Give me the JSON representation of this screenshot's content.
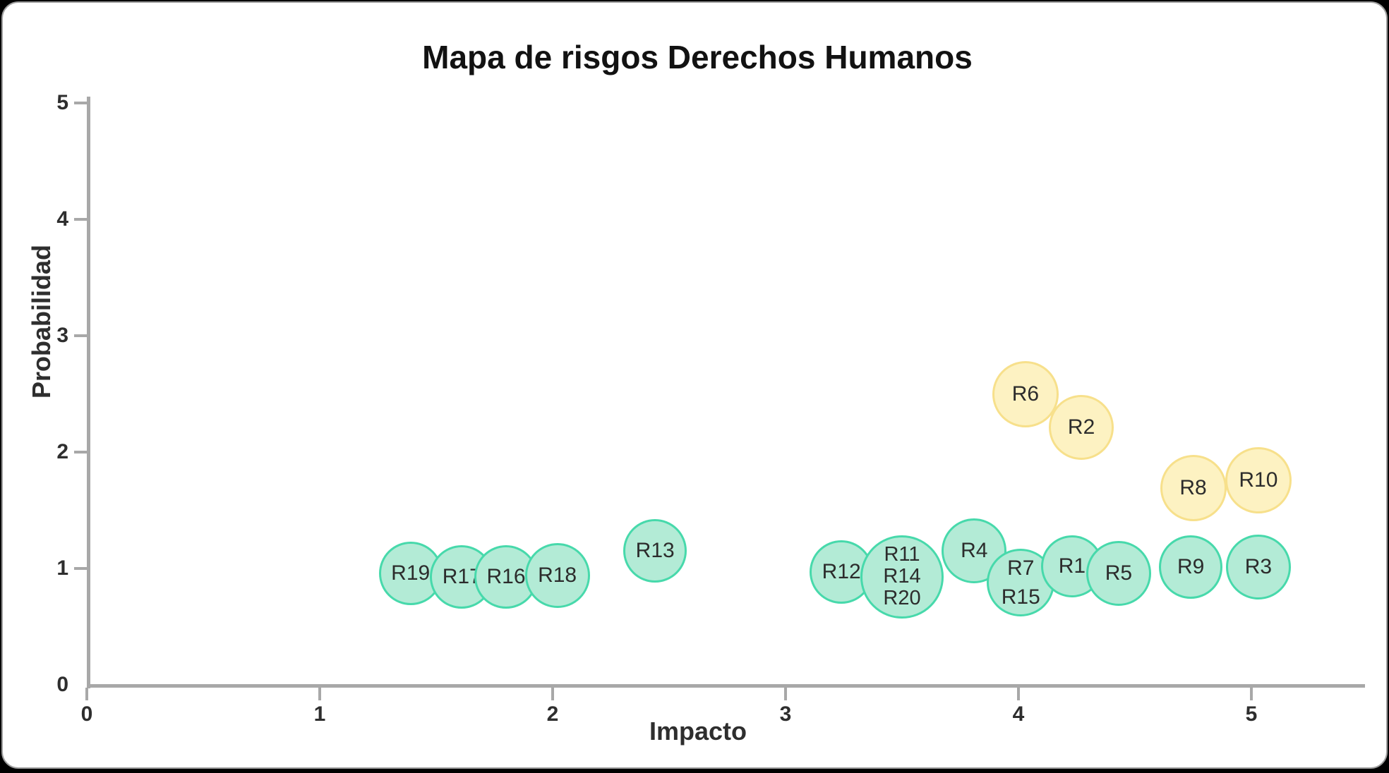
{
  "title": "Mapa de risgos Derechos Humanos",
  "chart_data": {
    "type": "scatter",
    "subtype": "bubble-risk-map",
    "title": "Mapa de risgos Derechos Humanos",
    "xlabel": "Impacto",
    "ylabel": "Probabilidad",
    "xlim": [
      0,
      5.45
    ],
    "ylim": [
      0,
      5
    ],
    "x_ticks": [
      "0",
      "1",
      "2",
      "3",
      "4",
      "5"
    ],
    "y_ticks": [
      "0",
      "1",
      "2",
      "3",
      "4",
      "5"
    ],
    "grid": false,
    "legend": "none",
    "series": [
      {
        "name": "riesgo-bajo-verde",
        "fill_color": "#b3ebd6",
        "stroke_color": "#47d9ab",
        "points": [
          {
            "labels": [
              "R19"
            ],
            "x": 1.39,
            "y": 0.96,
            "r": 45
          },
          {
            "labels": [
              "R17"
            ],
            "x": 1.61,
            "y": 0.93,
            "r": 45
          },
          {
            "labels": [
              "R16"
            ],
            "x": 1.8,
            "y": 0.93,
            "r": 45
          },
          {
            "labels": [
              "R18"
            ],
            "x": 2.02,
            "y": 0.94,
            "r": 46
          },
          {
            "labels": [
              "R13"
            ],
            "x": 2.44,
            "y": 1.15,
            "r": 45
          },
          {
            "labels": [
              "R12"
            ],
            "x": 3.24,
            "y": 0.97,
            "r": 45
          },
          {
            "labels": [
              "R11",
              "R14",
              "R20"
            ],
            "x": 3.5,
            "y": 0.93,
            "r": 59
          },
          {
            "labels": [
              "R4"
            ],
            "x": 3.81,
            "y": 1.15,
            "r": 46
          },
          {
            "labels": [
              "R7",
              "R15"
            ],
            "x": 4.01,
            "y": 0.88,
            "r": 48
          },
          {
            "labels": [
              "R1"
            ],
            "x": 4.23,
            "y": 1.02,
            "r": 44
          },
          {
            "labels": [
              "R5"
            ],
            "x": 4.43,
            "y": 0.96,
            "r": 46
          },
          {
            "labels": [
              "R9"
            ],
            "x": 4.74,
            "y": 1.01,
            "r": 45
          },
          {
            "labels": [
              "R3"
            ],
            "x": 5.03,
            "y": 1.01,
            "r": 46
          }
        ]
      },
      {
        "name": "riesgo-medio-amarillo",
        "fill_color": "#fdf2c2",
        "stroke_color": "#f7e08b",
        "points": [
          {
            "labels": [
              "R6"
            ],
            "x": 4.03,
            "y": 2.5,
            "r": 47
          },
          {
            "labels": [
              "R2"
            ],
            "x": 4.27,
            "y": 2.21,
            "r": 46
          },
          {
            "labels": [
              "R8"
            ],
            "x": 4.75,
            "y": 1.69,
            "r": 47
          },
          {
            "labels": [
              "R10"
            ],
            "x": 5.03,
            "y": 1.76,
            "r": 47
          }
        ]
      }
    ],
    "colors": {
      "axis": "#a8a8a8",
      "tick_label": "#2e2e2e",
      "title": "#121212",
      "bubble_text": "#2c2c2c",
      "card_background": "#ffffff",
      "page_background": "#000000"
    }
  }
}
